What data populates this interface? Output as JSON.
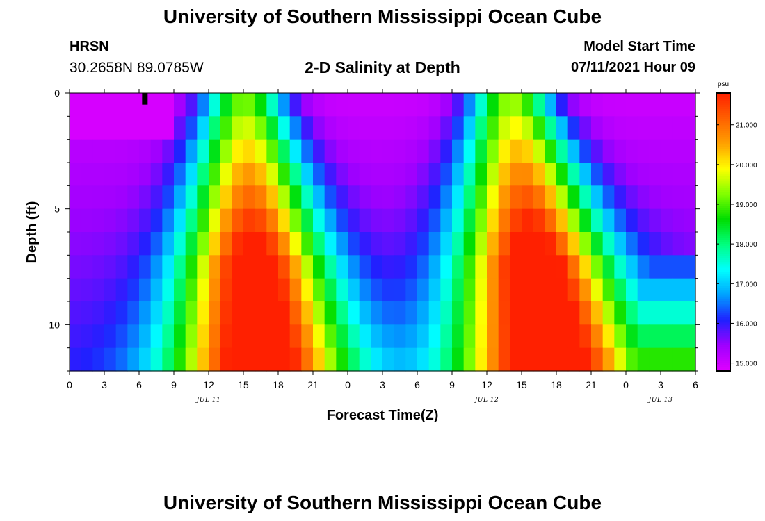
{
  "page": {
    "title": "University of Southern Mississippi Ocean Cube",
    "footer_title": "University of Southern Mississippi Ocean Cube",
    "station": "HRSN",
    "coords": "30.2658N  89.0785W",
    "chart_title": "2-D Salinity at Depth",
    "model_label": "Model Start Time",
    "model_time": "07/11/2021 Hour 09"
  },
  "chart_data": {
    "type": "heatmap",
    "title": "2-D Salinity at Depth",
    "xlabel": "Forecast Time(Z)",
    "ylabel": "Depth (ft)",
    "x_tick_labels": [
      "0",
      "3",
      "6",
      "9",
      "12",
      "15",
      "18",
      "21",
      "0",
      "3",
      "6",
      "9",
      "12",
      "15",
      "18",
      "21",
      "0",
      "3",
      "6"
    ],
    "x_date_labels": [
      {
        "label": "JUL 11",
        "hour": 12
      },
      {
        "label": "JUL 12",
        "hour": 36
      },
      {
        "label": "JUL 13",
        "hour": 51
      }
    ],
    "x_range_hours": [
      0,
      54
    ],
    "y_ticks": [
      0,
      5,
      10
    ],
    "y_range": [
      0,
      12
    ],
    "colorbar": {
      "unit": "psu",
      "ticks": [
        "15.000",
        "16.000",
        "17.000",
        "18.000",
        "19.000",
        "20.000",
        "21.000"
      ],
      "range": [
        14.8,
        21.8
      ],
      "colors": [
        "#e000ff",
        "#a000ff",
        "#2020ff",
        "#00a0ff",
        "#00ffff",
        "#00ff80",
        "#00dd00",
        "#80ff00",
        "#ffff00",
        "#ffa000",
        "#ff6000",
        "#ff2000"
      ]
    },
    "depth_levels": 12,
    "time_columns": 54,
    "salinity_model": {
      "surface_peaks": [
        {
          "center_hour": 15,
          "width": 3.2,
          "amp": 4.0
        },
        {
          "center_hour": 38,
          "width": 3.2,
          "amp": 4.2
        }
      ],
      "deep_peaks": [
        {
          "center_hour": 16.5,
          "width": 7.5,
          "amp": 6.8
        },
        {
          "center_hour": 41.5,
          "width": 8.0,
          "amp": 7.0
        }
      ],
      "baseline_surface": 15.0,
      "baseline_deep": 16.0,
      "late_deep_rise": 18.8
    },
    "marker": {
      "hour": 6.5,
      "depth": 0.5
    }
  }
}
